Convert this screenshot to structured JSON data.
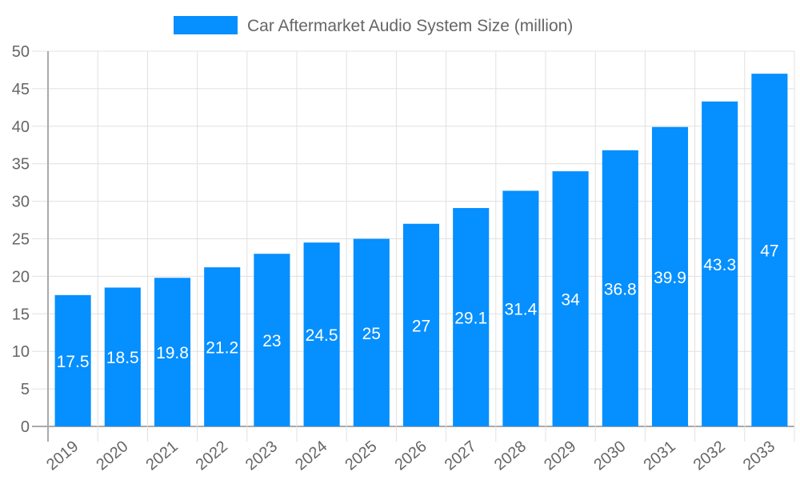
{
  "chart_data": {
    "type": "bar",
    "title": "",
    "xlabel": "",
    "ylabel": "",
    "categories": [
      "2019",
      "2020",
      "2021",
      "2022",
      "2023",
      "2024",
      "2025",
      "2026",
      "2027",
      "2028",
      "2029",
      "2030",
      "2031",
      "2032",
      "2033"
    ],
    "series": [
      {
        "name": "Car Aftermarket Audio System Size (million)",
        "values": [
          17.5,
          18.5,
          19.8,
          21.2,
          23,
          24.5,
          25,
          27,
          29.1,
          31.4,
          34,
          36.8,
          39.9,
          43.3,
          47
        ],
        "color": "#068ffe"
      }
    ],
    "ylim": [
      0,
      50
    ],
    "yticks": [
      0,
      5,
      10,
      15,
      20,
      25,
      30,
      35,
      40,
      45,
      50
    ],
    "grid": true,
    "legend_position": "top",
    "data_labels": true
  }
}
